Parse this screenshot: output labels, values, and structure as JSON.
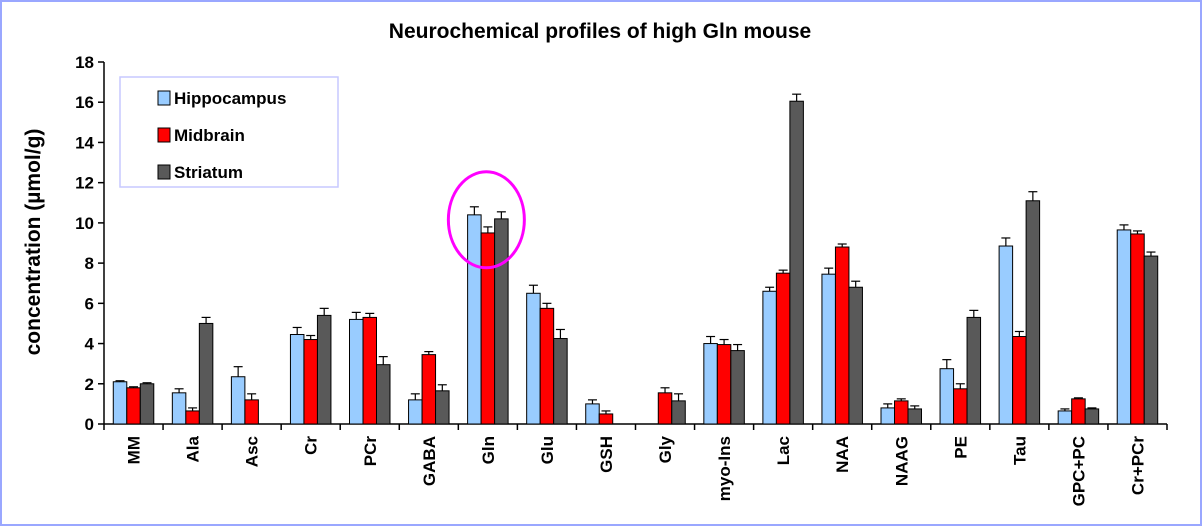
{
  "chart_data": {
    "type": "bar",
    "title": "Neurochemical profiles of high Gln mouse",
    "xlabel": "",
    "ylabel": "concentration (µmol/g)",
    "ylim": [
      0,
      18
    ],
    "yticks": [
      0,
      2,
      4,
      6,
      8,
      10,
      12,
      14,
      16,
      18
    ],
    "grid": false,
    "legend_position": "top-left",
    "categories": [
      "MM",
      "Ala",
      "Asc",
      "Cr",
      "PCr",
      "GABA",
      "Gln",
      "Glu",
      "GSH",
      "Gly",
      "myo-Ins",
      "Lac",
      "NAA",
      "NAAG",
      "PE",
      "Tau",
      "GPC+PC",
      "Cr+PCr"
    ],
    "series": [
      {
        "name": "Hippocampus",
        "color": "#99ccff",
        "values": [
          2.1,
          1.55,
          2.35,
          4.45,
          5.2,
          1.2,
          10.4,
          6.5,
          1.0,
          0,
          4.0,
          6.6,
          7.45,
          0.8,
          2.75,
          8.85,
          0.65,
          9.65
        ],
        "errors": [
          0.05,
          0.2,
          0.5,
          0.35,
          0.35,
          0.3,
          0.4,
          0.4,
          0.2,
          0,
          0.35,
          0.2,
          0.3,
          0.2,
          0.45,
          0.4,
          0.1,
          0.25
        ]
      },
      {
        "name": "Midbrain",
        "color": "#ff0000",
        "values": [
          1.8,
          0.65,
          1.2,
          4.2,
          5.3,
          3.45,
          9.5,
          5.75,
          0.5,
          1.55,
          3.95,
          7.5,
          8.8,
          1.15,
          1.75,
          4.35,
          1.25,
          9.45
        ],
        "errors": [
          0.05,
          0.15,
          0.3,
          0.2,
          0.2,
          0.15,
          0.3,
          0.25,
          0.15,
          0.25,
          0.25,
          0.15,
          0.15,
          0.1,
          0.25,
          0.25,
          0.05,
          0.15
        ]
      },
      {
        "name": "Striatum",
        "color": "#595959",
        "values": [
          2.0,
          5.0,
          0,
          5.4,
          2.95,
          1.65,
          10.2,
          4.25,
          0,
          1.15,
          3.65,
          16.05,
          6.8,
          0.75,
          5.3,
          11.1,
          0.75,
          8.35
        ],
        "errors": [
          0.05,
          0.3,
          0,
          0.35,
          0.4,
          0.3,
          0.35,
          0.45,
          0,
          0.35,
          0.3,
          0.35,
          0.3,
          0.15,
          0.35,
          0.45,
          0.05,
          0.2
        ]
      }
    ],
    "annotations": [
      {
        "type": "ellipse",
        "target_category": "Gln",
        "color": "#ff00ff"
      }
    ]
  }
}
